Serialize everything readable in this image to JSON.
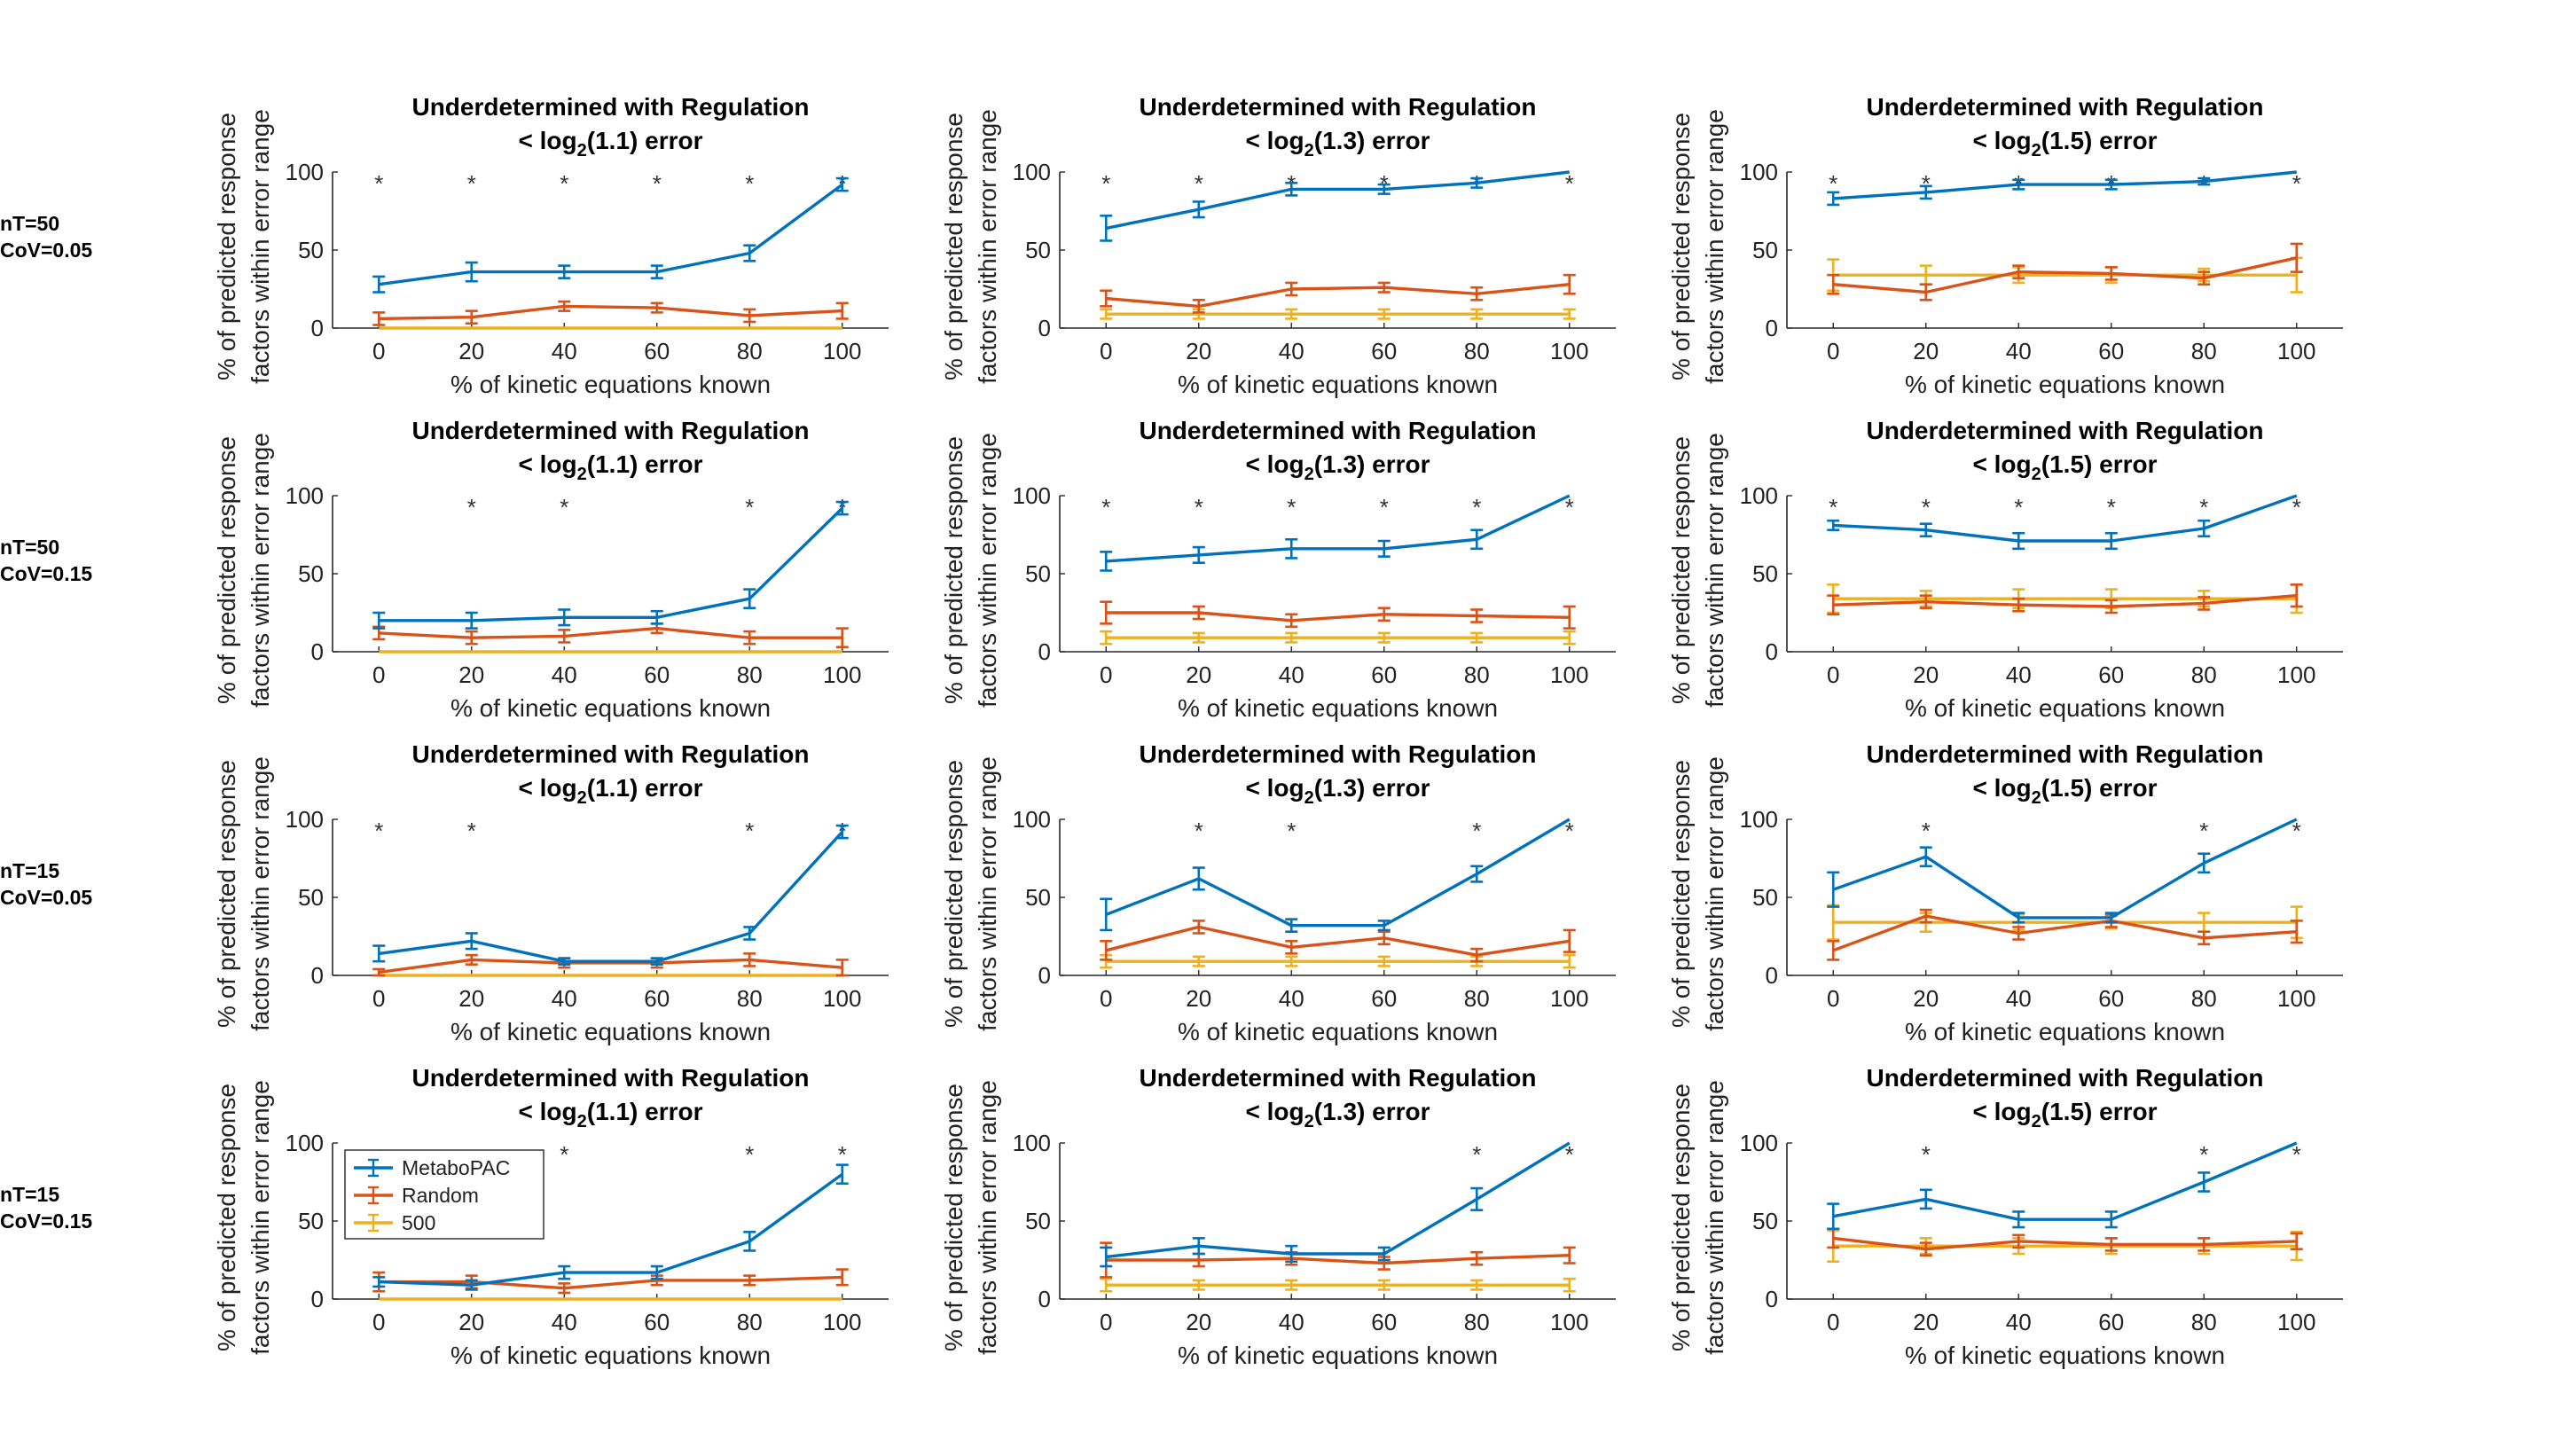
{
  "figure": {
    "row_labels": [
      [
        "nT=50",
        "CoV=0.05"
      ],
      [
        "nT=50",
        "CoV=0.15"
      ],
      [
        "nT=15",
        "CoV=0.05"
      ],
      [
        "nT=15",
        "CoV=0.15"
      ]
    ],
    "subplot_title_line1": "Underdetermined with Regulation",
    "subplot_title_line2_by_column": [
      {
        "pre": "< log",
        "sub": "2",
        "post": "(1.1) error"
      },
      {
        "pre": "< log",
        "sub": "2",
        "post": "(1.3) error"
      },
      {
        "pre": "< log",
        "sub": "2",
        "post": "(1.5) error"
      }
    ],
    "xlabel": "% of kinetic equations known",
    "ylabel_lines": [
      "% of predicted response",
      "factors within error range"
    ],
    "x_ticks": [
      0,
      20,
      40,
      60,
      80,
      100
    ],
    "y_ticks": [
      0,
      50,
      100
    ],
    "significance_marker": "*",
    "legend": [
      "MetaboPAC",
      "Random",
      "500"
    ],
    "legend_subplot": [
      3,
      0
    ],
    "colors": {
      "MetaboPAC": "#0072BD",
      "Random": "#D95319",
      "500": "#EDB120"
    }
  },
  "chart_data": [
    {
      "type": "line",
      "row": 0,
      "col": 0,
      "x": [
        0,
        20,
        40,
        60,
        80,
        100
      ],
      "xlim": [
        -10,
        110
      ],
      "ylim": [
        0,
        100
      ],
      "star_x": [
        0,
        20,
        40,
        60,
        80,
        100
      ],
      "series": [
        {
          "name": "MetaboPAC",
          "values": [
            28,
            36,
            36,
            36,
            48,
            92
          ],
          "err": [
            5,
            6,
            4,
            4,
            5,
            4
          ]
        },
        {
          "name": "Random",
          "values": [
            6,
            7,
            14,
            13,
            8,
            11
          ],
          "err": [
            4,
            4,
            3,
            3,
            4,
            5
          ]
        },
        {
          "name": "500",
          "values": [
            0,
            0,
            0,
            0,
            0,
            0
          ],
          "err": [
            0,
            0,
            0,
            0,
            0,
            0
          ]
        }
      ]
    },
    {
      "type": "line",
      "row": 0,
      "col": 1,
      "x": [
        0,
        20,
        40,
        60,
        80,
        100
      ],
      "xlim": [
        -10,
        110
      ],
      "ylim": [
        0,
        100
      ],
      "star_x": [
        0,
        20,
        40,
        60,
        80,
        100
      ],
      "series": [
        {
          "name": "MetaboPAC",
          "values": [
            64,
            76,
            89,
            89,
            93,
            100
          ],
          "err": [
            8,
            5,
            4,
            3,
            3,
            0
          ]
        },
        {
          "name": "Random",
          "values": [
            19,
            14,
            25,
            26,
            22,
            28
          ],
          "err": [
            5,
            4,
            4,
            3,
            4,
            6
          ]
        },
        {
          "name": "500",
          "values": [
            9,
            9,
            9,
            9,
            9,
            9
          ],
          "err": [
            3,
            3,
            3,
            3,
            3,
            3
          ]
        }
      ]
    },
    {
      "type": "line",
      "row": 0,
      "col": 2,
      "x": [
        0,
        20,
        40,
        60,
        80,
        100
      ],
      "xlim": [
        -10,
        110
      ],
      "ylim": [
        0,
        100
      ],
      "star_x": [
        0,
        20,
        40,
        60,
        80,
        100
      ],
      "series": [
        {
          "name": "MetaboPAC",
          "values": [
            83,
            87,
            92,
            92,
            94,
            100
          ],
          "err": [
            4,
            4,
            3,
            3,
            2,
            0
          ]
        },
        {
          "name": "Random",
          "values": [
            28,
            23,
            36,
            35,
            32,
            45
          ],
          "err": [
            6,
            5,
            4,
            4,
            4,
            9
          ]
        },
        {
          "name": "500",
          "values": [
            34,
            34,
            34,
            34,
            34,
            34
          ],
          "err": [
            10,
            6,
            5,
            5,
            4,
            11
          ]
        }
      ]
    },
    {
      "type": "line",
      "row": 1,
      "col": 0,
      "x": [
        0,
        20,
        40,
        60,
        80,
        100
      ],
      "xlim": [
        -10,
        110
      ],
      "ylim": [
        0,
        100
      ],
      "star_x": [
        20,
        40,
        80,
        100
      ],
      "series": [
        {
          "name": "MetaboPAC",
          "values": [
            20,
            20,
            22,
            22,
            34,
            92
          ],
          "err": [
            5,
            5,
            5,
            4,
            6,
            4
          ]
        },
        {
          "name": "Random",
          "values": [
            12,
            9,
            10,
            15,
            9,
            9
          ],
          "err": [
            4,
            4,
            4,
            3,
            4,
            6
          ]
        },
        {
          "name": "500",
          "values": [
            0,
            0,
            0,
            0,
            0,
            0
          ],
          "err": [
            0,
            0,
            0,
            0,
            0,
            0
          ]
        }
      ]
    },
    {
      "type": "line",
      "row": 1,
      "col": 1,
      "x": [
        0,
        20,
        40,
        60,
        80,
        100
      ],
      "xlim": [
        -10,
        110
      ],
      "ylim": [
        0,
        100
      ],
      "star_x": [
        0,
        20,
        40,
        60,
        80,
        100
      ],
      "series": [
        {
          "name": "MetaboPAC",
          "values": [
            58,
            62,
            66,
            66,
            72,
            100
          ],
          "err": [
            6,
            5,
            6,
            5,
            6,
            0
          ]
        },
        {
          "name": "Random",
          "values": [
            25,
            25,
            20,
            24,
            23,
            22
          ],
          "err": [
            7,
            4,
            4,
            4,
            4,
            7
          ]
        },
        {
          "name": "500",
          "values": [
            9,
            9,
            9,
            9,
            9,
            9
          ],
          "err": [
            4,
            3,
            3,
            3,
            3,
            4
          ]
        }
      ]
    },
    {
      "type": "line",
      "row": 1,
      "col": 2,
      "x": [
        0,
        20,
        40,
        60,
        80,
        100
      ],
      "xlim": [
        -10,
        110
      ],
      "ylim": [
        0,
        100
      ],
      "star_x": [
        0,
        20,
        40,
        60,
        80,
        100
      ],
      "series": [
        {
          "name": "MetaboPAC",
          "values": [
            81,
            78,
            71,
            71,
            79,
            100
          ],
          "err": [
            3,
            4,
            5,
            5,
            5,
            0
          ]
        },
        {
          "name": "Random",
          "values": [
            30,
            32,
            30,
            29,
            31,
            36
          ],
          "err": [
            6,
            4,
            4,
            4,
            4,
            7
          ]
        },
        {
          "name": "500",
          "values": [
            34,
            34,
            34,
            34,
            34,
            34
          ],
          "err": [
            9,
            5,
            6,
            6,
            5,
            9
          ]
        }
      ]
    },
    {
      "type": "line",
      "row": 2,
      "col": 0,
      "x": [
        0,
        20,
        40,
        60,
        80,
        100
      ],
      "xlim": [
        -10,
        110
      ],
      "ylim": [
        0,
        100
      ],
      "star_x": [
        0,
        20,
        80,
        100
      ],
      "series": [
        {
          "name": "MetaboPAC",
          "values": [
            14,
            22,
            9,
            9,
            27,
            92
          ],
          "err": [
            5,
            5,
            2,
            2,
            4,
            4
          ]
        },
        {
          "name": "Random",
          "values": [
            2,
            10,
            8,
            8,
            10,
            5
          ],
          "err": [
            2,
            3,
            3,
            3,
            4,
            5
          ]
        },
        {
          "name": "500",
          "values": [
            0,
            0,
            0,
            0,
            0,
            0
          ],
          "err": [
            0,
            0,
            0,
            0,
            0,
            0
          ]
        }
      ]
    },
    {
      "type": "line",
      "row": 2,
      "col": 1,
      "x": [
        0,
        20,
        40,
        60,
        80,
        100
      ],
      "xlim": [
        -10,
        110
      ],
      "ylim": [
        0,
        100
      ],
      "star_x": [
        20,
        40,
        80,
        100
      ],
      "series": [
        {
          "name": "MetaboPAC",
          "values": [
            39,
            62,
            32,
            32,
            65,
            100
          ],
          "err": [
            10,
            7,
            4,
            3,
            5,
            0
          ]
        },
        {
          "name": "Random",
          "values": [
            16,
            31,
            18,
            24,
            13,
            22
          ],
          "err": [
            6,
            4,
            4,
            4,
            4,
            7
          ]
        },
        {
          "name": "500",
          "values": [
            9,
            9,
            9,
            9,
            9,
            9
          ],
          "err": [
            4,
            3,
            3,
            3,
            3,
            4
          ]
        }
      ]
    },
    {
      "type": "line",
      "row": 2,
      "col": 2,
      "x": [
        0,
        20,
        40,
        60,
        80,
        100
      ],
      "xlim": [
        -10,
        110
      ],
      "ylim": [
        0,
        100
      ],
      "star_x": [
        20,
        80,
        100
      ],
      "series": [
        {
          "name": "MetaboPAC",
          "values": [
            55,
            76,
            37,
            37,
            72,
            100
          ],
          "err": [
            11,
            6,
            3,
            3,
            6,
            0
          ]
        },
        {
          "name": "Random",
          "values": [
            16,
            38,
            27,
            35,
            24,
            28
          ],
          "err": [
            6,
            4,
            4,
            4,
            4,
            7
          ]
        },
        {
          "name": "500",
          "values": [
            34,
            34,
            34,
            34,
            34,
            34
          ],
          "err": [
            11,
            6,
            5,
            4,
            6,
            10
          ]
        }
      ]
    },
    {
      "type": "line",
      "row": 3,
      "col": 0,
      "x": [
        0,
        20,
        40,
        60,
        80,
        100
      ],
      "xlim": [
        -10,
        110
      ],
      "ylim": [
        0,
        100
      ],
      "star_x": [
        40,
        80,
        100
      ],
      "series": [
        {
          "name": "MetaboPAC",
          "values": [
            11,
            9,
            17,
            17,
            37,
            80
          ],
          "err": [
            3,
            3,
            4,
            4,
            6,
            6
          ]
        },
        {
          "name": "Random",
          "values": [
            11,
            11,
            7,
            12,
            12,
            14
          ],
          "err": [
            6,
            4,
            3,
            3,
            3,
            5
          ]
        },
        {
          "name": "500",
          "values": [
            0,
            0,
            0,
            0,
            0,
            0
          ],
          "err": [
            0,
            0,
            0,
            0,
            0,
            0
          ]
        }
      ]
    },
    {
      "type": "line",
      "row": 3,
      "col": 1,
      "x": [
        0,
        20,
        40,
        60,
        80,
        100
      ],
      "xlim": [
        -10,
        110
      ],
      "ylim": [
        0,
        100
      ],
      "star_x": [
        80,
        100
      ],
      "series": [
        {
          "name": "MetaboPAC",
          "values": [
            27,
            34,
            29,
            29,
            64,
            100
          ],
          "err": [
            6,
            5,
            5,
            4,
            7,
            0
          ]
        },
        {
          "name": "Random",
          "values": [
            25,
            25,
            26,
            23,
            26,
            28
          ],
          "err": [
            11,
            4,
            4,
            4,
            4,
            5
          ]
        },
        {
          "name": "500",
          "values": [
            9,
            9,
            9,
            9,
            9,
            9
          ],
          "err": [
            4,
            3,
            3,
            3,
            3,
            4
          ]
        }
      ]
    },
    {
      "type": "line",
      "row": 3,
      "col": 2,
      "x": [
        0,
        20,
        40,
        60,
        80,
        100
      ],
      "xlim": [
        -10,
        110
      ],
      "ylim": [
        0,
        100
      ],
      "star_x": [
        20,
        80,
        100
      ],
      "series": [
        {
          "name": "MetaboPAC",
          "values": [
            53,
            64,
            51,
            51,
            75,
            100
          ],
          "err": [
            8,
            6,
            5,
            5,
            6,
            0
          ]
        },
        {
          "name": "Random",
          "values": [
            39,
            32,
            37,
            35,
            35,
            37
          ],
          "err": [
            6,
            4,
            4,
            4,
            4,
            5
          ]
        },
        {
          "name": "500",
          "values": [
            34,
            34,
            34,
            34,
            34,
            34
          ],
          "err": [
            10,
            5,
            5,
            5,
            5,
            9
          ]
        }
      ]
    }
  ]
}
